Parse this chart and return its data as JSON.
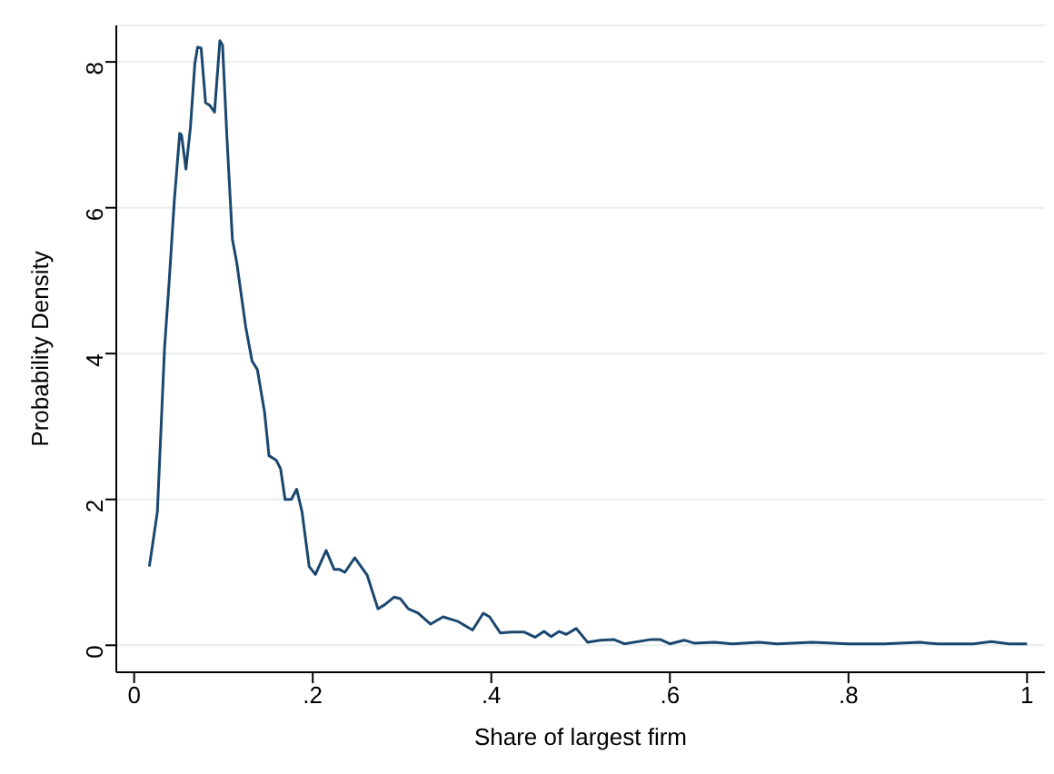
{
  "chart_data": {
    "type": "line",
    "xlabel": "Share of largest firm",
    "ylabel": "Probability Density",
    "xlim": [
      -0.02,
      1.02
    ],
    "ylim": [
      -0.37,
      8.5
    ],
    "xticks": [
      0,
      {
        "value": 0.2,
        "label": ".2"
      },
      {
        "value": 0.4,
        "label": ".4"
      },
      {
        "value": 0.6,
        "label": ".6"
      },
      {
        "value": 0.8,
        "label": ".8"
      },
      1
    ],
    "yticks": [
      0,
      2,
      4,
      6,
      8
    ],
    "grid": "y",
    "legend": false,
    "marker": "none",
    "line_style": "solid",
    "series": [
      {
        "color": "#1a476f",
        "x": [
          0.017,
          0.026,
          0.034,
          0.039,
          0.045,
          0.051,
          0.053,
          0.058,
          0.063,
          0.068,
          0.071,
          0.075,
          0.08,
          0.085,
          0.09,
          0.096,
          0.099,
          0.104,
          0.11,
          0.115,
          0.125,
          0.132,
          0.138,
          0.146,
          0.151,
          0.159,
          0.164,
          0.169,
          0.176,
          0.182,
          0.188,
          0.196,
          0.203,
          0.215,
          0.224,
          0.23,
          0.236,
          0.247,
          0.261,
          0.273,
          0.281,
          0.291,
          0.298,
          0.307,
          0.318,
          0.332,
          0.346,
          0.362,
          0.379,
          0.391,
          0.398,
          0.41,
          0.423,
          0.437,
          0.449,
          0.459,
          0.467,
          0.476,
          0.484,
          0.495,
          0.508,
          0.522,
          0.537,
          0.549,
          0.579,
          0.589,
          0.6,
          0.616,
          0.627,
          0.65,
          0.67,
          0.7,
          0.72,
          0.76,
          0.8,
          0.84,
          0.88,
          0.9,
          0.94,
          0.96,
          0.98,
          1.0
        ],
        "values": [
          1.08,
          1.83,
          4.07,
          4.95,
          6.1,
          7.02,
          7.0,
          6.53,
          7.1,
          7.98,
          8.2,
          8.19,
          7.44,
          7.4,
          7.31,
          8.29,
          8.23,
          6.94,
          5.57,
          5.24,
          4.36,
          3.9,
          3.78,
          3.2,
          2.6,
          2.54,
          2.42,
          2.0,
          2.0,
          2.14,
          1.83,
          1.08,
          0.97,
          1.3,
          1.04,
          1.04,
          1.0,
          1.2,
          0.96,
          0.5,
          0.56,
          0.66,
          0.64,
          0.5,
          0.44,
          0.29,
          0.39,
          0.33,
          0.21,
          0.44,
          0.39,
          0.17,
          0.18,
          0.18,
          0.11,
          0.19,
          0.12,
          0.19,
          0.15,
          0.23,
          0.04,
          0.07,
          0.08,
          0.02,
          0.08,
          0.08,
          0.02,
          0.07,
          0.03,
          0.04,
          0.02,
          0.04,
          0.02,
          0.04,
          0.02,
          0.02,
          0.04,
          0.02,
          0.02,
          0.05,
          0.02,
          0.02
        ]
      }
    ]
  }
}
